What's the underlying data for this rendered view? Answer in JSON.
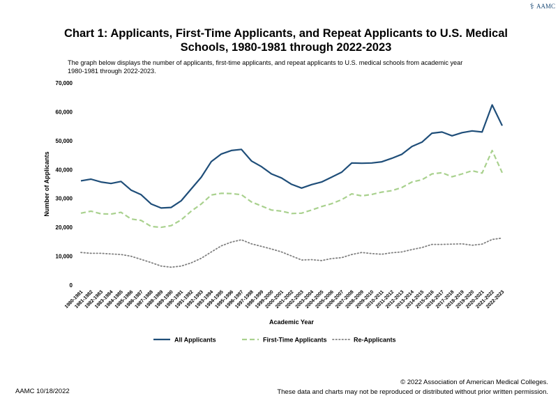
{
  "logo": {
    "text": "AAMC"
  },
  "chart_data": {
    "type": "line",
    "title": "Chart 1: Applicants, First-Time Applicants, and Repeat Applicants to U.S. Medical Schools, 1980-1981 through 2022-2023",
    "subtitle": "The graph below displays the number of applicants, first-time applicants, and repeat applicants to U.S. medical schools from academic year 1980-1981 through 2022-2023.",
    "xlabel": "Academic Year",
    "ylabel": "Number of Applicants",
    "ylim": [
      0,
      70000
    ],
    "yticks": [
      0,
      10000,
      20000,
      30000,
      40000,
      50000,
      60000,
      70000
    ],
    "ytick_labels": [
      "0",
      "10,000",
      "20,000",
      "30,000",
      "40,000",
      "50,000",
      "60,000",
      "70,000"
    ],
    "grid": false,
    "legend_position": "bottom",
    "categories": [
      "1980-1981",
      "1981-1982",
      "1982-1983",
      "1983-1984",
      "1984-1985",
      "1985-1986",
      "1986-1987",
      "1987-1988",
      "1988-1989",
      "1989-1990",
      "1990-1991",
      "1991-1992",
      "1992-1993",
      "1993-1994",
      "1994-1995",
      "1995-1996",
      "1996-1997",
      "1997-1998",
      "1998-1999",
      "1999-2000",
      "2000-2001",
      "2001-2002",
      "2002-2003",
      "2003-2004",
      "2004-2005",
      "2005-2006",
      "2006-2007",
      "2007-2008",
      "2008-2009",
      "2009-2010",
      "2010-2011",
      "2011-2012",
      "2012-2013",
      "2013-2014",
      "2014-2015",
      "2015-2016",
      "2016-2017",
      "2017-2018",
      "2018-2019",
      "2019-2020",
      "2020-2021",
      "2021-2022",
      "2022-2023"
    ],
    "series": [
      {
        "name": "All Applicants",
        "color": "#1f4e79",
        "style": "solid",
        "values": [
          36100,
          36700,
          35700,
          35200,
          35900,
          32900,
          31300,
          28100,
          26700,
          26900,
          29200,
          33300,
          37400,
          42800,
          45400,
          46600,
          47000,
          43000,
          41000,
          38500,
          37100,
          34900,
          33600,
          34800,
          35700,
          37400,
          39100,
          42300,
          42200,
          42300,
          42700,
          43900,
          45300,
          48000,
          49500,
          52600,
          53000,
          51700,
          52800,
          53400,
          53000,
          62400,
          55200
        ]
      },
      {
        "name": "First-Time Applicants",
        "color": "#a9d18e",
        "style": "dashed",
        "values": [
          24900,
          25600,
          24700,
          24600,
          25200,
          22900,
          22400,
          20300,
          20000,
          20600,
          22600,
          25600,
          28100,
          31200,
          31800,
          31700,
          31300,
          28800,
          27400,
          26000,
          25600,
          24800,
          24900,
          26000,
          27200,
          28200,
          29600,
          31600,
          30900,
          31400,
          32200,
          32700,
          33800,
          35700,
          36500,
          38500,
          38900,
          37500,
          38500,
          39600,
          38800,
          46600,
          38900
        ]
      },
      {
        "name": "Re-Applicants",
        "color": "#808080",
        "style": "dotted",
        "values": [
          11300,
          11000,
          11000,
          10800,
          10600,
          10000,
          8900,
          7800,
          6600,
          6200,
          6600,
          7700,
          9300,
          11500,
          13600,
          14900,
          15700,
          14300,
          13400,
          12500,
          11500,
          10100,
          8700,
          8800,
          8500,
          9200,
          9500,
          10600,
          11300,
          10900,
          10700,
          11200,
          11500,
          12300,
          13000,
          14100,
          14100,
          14200,
          14300,
          13800,
          14200,
          15800,
          16300
        ]
      }
    ]
  },
  "footer": {
    "left": "AAMC 10/18/2022",
    "copyright": "© 2022 Association of American Medical Colleges.",
    "notice": "These data and charts may not be reproduced or distributed without prior written permission."
  }
}
